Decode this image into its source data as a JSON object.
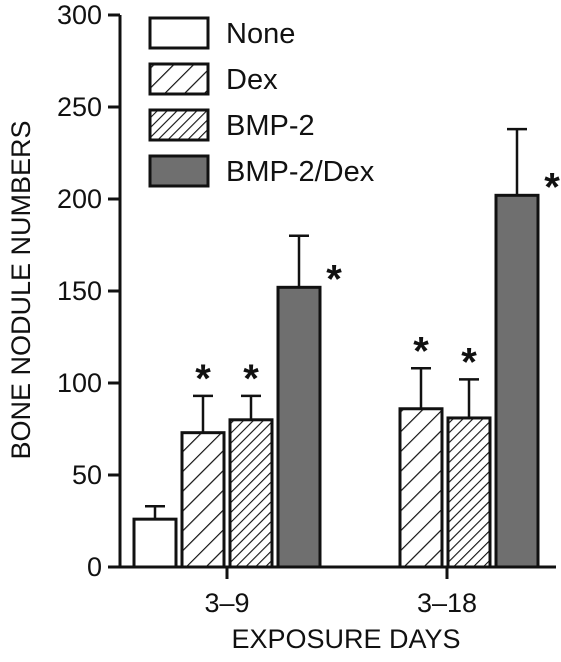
{
  "chart_data": {
    "type": "bar",
    "title": "",
    "xlabel": "EXPOSURE DAYS",
    "ylabel": "BONE NODULE NUMBERS",
    "ylim": [
      0,
      300
    ],
    "yticks": [
      "0",
      "50",
      "100",
      "150",
      "200",
      "250",
      "300"
    ],
    "categories": [
      "3–9",
      "3–18"
    ],
    "legend_position": "top-left",
    "significance_marker": "*",
    "series": [
      {
        "name": "None",
        "pattern": "none",
        "fill": "#ffffff",
        "values": [
          26,
          null
        ],
        "errors": [
          7,
          null
        ],
        "significant": [
          false,
          false
        ]
      },
      {
        "name": "Dex",
        "pattern": "hatch-wide",
        "fill": "#ffffff",
        "values": [
          73,
          86
        ],
        "errors": [
          20,
          22
        ],
        "significant": [
          true,
          true
        ]
      },
      {
        "name": "BMP-2",
        "pattern": "hatch-dense",
        "fill": "#ffffff",
        "values": [
          80,
          81
        ],
        "errors": [
          13,
          21
        ],
        "significant": [
          true,
          true
        ]
      },
      {
        "name": "BMP-2/Dex",
        "pattern": "solid",
        "fill": "#6f6f6f",
        "values": [
          152,
          202
        ],
        "errors": [
          28,
          36
        ],
        "significant": [
          true,
          true
        ]
      }
    ]
  }
}
